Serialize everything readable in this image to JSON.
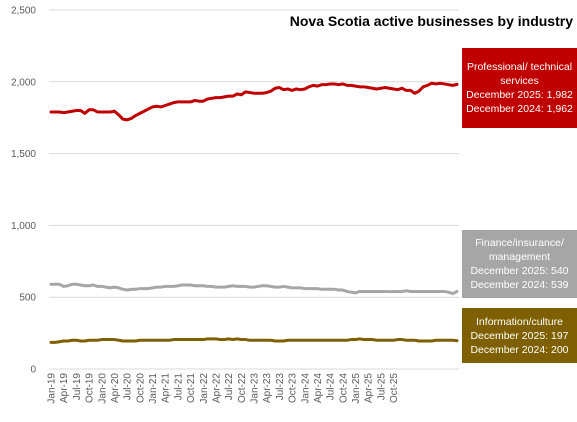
{
  "chart_data": {
    "type": "line",
    "title": "Nova Scotia active businesses by industry",
    "xlabel": "",
    "ylabel": "",
    "ylim": [
      0,
      2500
    ],
    "yticks": [
      "0",
      "500",
      "1,000",
      "1,500",
      "2,000",
      "2,500"
    ],
    "xtick_labels": [
      "Jan-19",
      "Apr-19",
      "Jul-19",
      "Oct-19",
      "Jan-20",
      "Apr-20",
      "Jul-20",
      "Oct-20",
      "Jan-21",
      "Apr-21",
      "Jul-21",
      "Oct-21",
      "Jan-22",
      "Apr-22",
      "Jul-22",
      "Oct-22",
      "Jan-23",
      "Apr-23",
      "Jul-23",
      "Oct-23",
      "Jan-24",
      "Apr-24",
      "Jul-24",
      "Oct-24",
      "Jan-25",
      "Apr-25",
      "Jul-25",
      "Oct-25"
    ],
    "x_start": "Jan-19",
    "x_end": "Dec-25",
    "grid": "horizontal",
    "series": [
      {
        "name": "Professional/ technical services",
        "color": "#C00000",
        "annotation": [
          "Professional/ technical",
          "services",
          "December 2025: 1,982",
          "December 2024: 1,962"
        ],
        "values": [
          1790,
          1790,
          1790,
          1785,
          1790,
          1795,
          1800,
          1800,
          1780,
          1805,
          1805,
          1790,
          1790,
          1790,
          1790,
          1795,
          1770,
          1740,
          1735,
          1745,
          1765,
          1780,
          1795,
          1810,
          1825,
          1830,
          1825,
          1835,
          1845,
          1855,
          1860,
          1860,
          1860,
          1860,
          1870,
          1865,
          1865,
          1880,
          1885,
          1890,
          1890,
          1895,
          1900,
          1900,
          1915,
          1910,
          1930,
          1925,
          1920,
          1920,
          1920,
          1925,
          1935,
          1955,
          1960,
          1945,
          1950,
          1940,
          1950,
          1945,
          1950,
          1965,
          1975,
          1970,
          1980,
          1980,
          1985,
          1985,
          1980,
          1985,
          1975,
          1975,
          1970,
          1965,
          1965,
          1960,
          1955,
          1950,
          1955,
          1960,
          1955,
          1950,
          1945,
          1955,
          1940,
          1940,
          1920,
          1935,
          1965,
          1975,
          1990,
          1985,
          1990,
          1985,
          1980,
          1975,
          1982
        ]
      },
      {
        "name": "Finance/insurance/ management",
        "color": "#A6A6A6",
        "annotation": [
          "Finance/insurance/",
          "management",
          "December 2025: 540",
          "December 2024: 539"
        ],
        "values": [
          590,
          590,
          590,
          575,
          580,
          590,
          590,
          585,
          580,
          580,
          585,
          575,
          575,
          570,
          565,
          570,
          565,
          555,
          550,
          555,
          555,
          560,
          560,
          560,
          565,
          570,
          570,
          575,
          575,
          575,
          580,
          585,
          585,
          585,
          580,
          580,
          580,
          575,
          575,
          570,
          570,
          570,
          575,
          580,
          575,
          575,
          575,
          570,
          570,
          575,
          580,
          580,
          575,
          570,
          570,
          575,
          570,
          565,
          565,
          565,
          560,
          560,
          560,
          560,
          555,
          555,
          555,
          555,
          550,
          550,
          540,
          535,
          530,
          540,
          540,
          540,
          540,
          540,
          540,
          540,
          539,
          540,
          540,
          540,
          545,
          540,
          540,
          540,
          540,
          540,
          540,
          540,
          540,
          540,
          535,
          525,
          540
        ]
      },
      {
        "name": "Information/culture",
        "color": "#7F6000",
        "annotation": [
          "Information/culture",
          "December 2025: 197",
          "December 2024: 200"
        ],
        "values": [
          185,
          185,
          190,
          195,
          195,
          200,
          200,
          195,
          195,
          200,
          200,
          200,
          205,
          205,
          205,
          205,
          200,
          195,
          195,
          195,
          195,
          200,
          200,
          200,
          200,
          200,
          200,
          200,
          200,
          205,
          205,
          205,
          205,
          205,
          205,
          205,
          205,
          210,
          210,
          210,
          205,
          205,
          210,
          205,
          210,
          205,
          205,
          200,
          200,
          200,
          200,
          200,
          200,
          195,
          195,
          195,
          200,
          200,
          200,
          200,
          200,
          200,
          200,
          200,
          200,
          200,
          200,
          200,
          200,
          200,
          200,
          205,
          205,
          210,
          205,
          205,
          205,
          200,
          200,
          200,
          200,
          200,
          205,
          205,
          200,
          200,
          200,
          195,
          195,
          195,
          195,
          200,
          200,
          200,
          200,
          200,
          197
        ]
      }
    ]
  }
}
